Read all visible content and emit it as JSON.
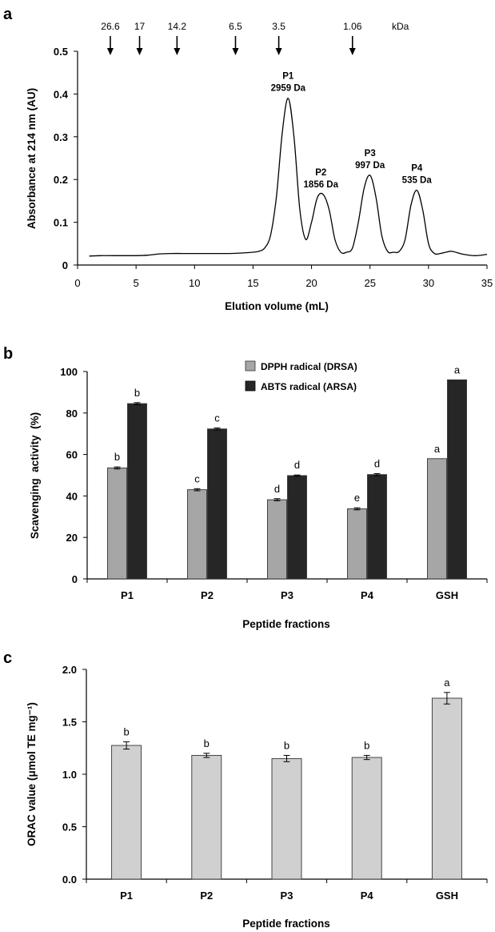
{
  "chart_data": [
    {
      "panel": "a",
      "type": "line",
      "xlabel": "Elution volume (mL)",
      "ylabel": "Absorbance at 214 nm (AU)",
      "xlim": [
        0,
        35
      ],
      "ylim": [
        0,
        0.5
      ],
      "xticks": [
        0,
        5,
        10,
        15,
        20,
        25,
        30,
        35
      ],
      "yticks": [
        "0",
        "0.1",
        "0.2",
        "0.3",
        "0.4",
        "0.5"
      ],
      "grid": false,
      "x": [
        1,
        2,
        3,
        4,
        5,
        6,
        7,
        8,
        9,
        10,
        11,
        12,
        13,
        14,
        15,
        15.5,
        16,
        16.5,
        17,
        17.5,
        18,
        18.5,
        19,
        19.5,
        20,
        20.5,
        21,
        21.5,
        22,
        22.5,
        23,
        23.5,
        24,
        24.5,
        25,
        25.5,
        26,
        26.5,
        27,
        27.5,
        28,
        28.5,
        29,
        29.5,
        30,
        30.5,
        31,
        31.5,
        32,
        33,
        34,
        35
      ],
      "y": [
        0.021,
        0.022,
        0.022,
        0.022,
        0.022,
        0.023,
        0.026,
        0.027,
        0.027,
        0.027,
        0.027,
        0.027,
        0.027,
        0.028,
        0.03,
        0.032,
        0.04,
        0.07,
        0.16,
        0.31,
        0.39,
        0.3,
        0.13,
        0.06,
        0.1,
        0.158,
        0.165,
        0.13,
        0.06,
        0.03,
        0.03,
        0.04,
        0.1,
        0.18,
        0.21,
        0.16,
        0.07,
        0.032,
        0.03,
        0.032,
        0.06,
        0.14,
        0.175,
        0.13,
        0.05,
        0.027,
        0.027,
        0.03,
        0.032,
        0.025,
        0.022,
        0.025
      ],
      "mw_markers": {
        "unit": "kDa",
        "labels": [
          "26.6",
          "17",
          "14.2",
          "6.5",
          "3.5",
          "1.06"
        ],
        "x": [
          2.8,
          5.3,
          8.5,
          13.5,
          17.2,
          23.5
        ]
      },
      "peaks": [
        {
          "name": "P1",
          "mass": "2959 Da",
          "x": 18.0,
          "y": 0.39
        },
        {
          "name": "P2",
          "mass": "1856 Da",
          "x": 20.8,
          "y": 0.165
        },
        {
          "name": "P3",
          "mass": "997 Da",
          "x": 25.0,
          "y": 0.21
        },
        {
          "name": "P4",
          "mass": "535 Da",
          "x": 29.0,
          "y": 0.175
        }
      ]
    },
    {
      "panel": "b",
      "type": "bar",
      "xlabel": "Peptide fractions",
      "ylabel": "Scavenging  activity  (%)",
      "ylim": [
        0,
        100
      ],
      "yticks": [
        "0",
        "20",
        "40",
        "60",
        "80",
        "100"
      ],
      "categories": [
        "P1",
        "P2",
        "P3",
        "P4",
        "GSH"
      ],
      "legend_position": "top-right",
      "series": [
        {
          "name": "DPPH radical (DRSA)",
          "color": "#a6a6a6",
          "values": [
            53.5,
            43,
            38.2,
            33.8,
            58
          ],
          "errors": [
            0.5,
            0.5,
            0.5,
            0.5,
            0
          ],
          "letters": [
            "b",
            "c",
            "d",
            "e",
            "a"
          ]
        },
        {
          "name": "ABTS radical (ARSA)",
          "color": "#262626",
          "values": [
            84.5,
            72.3,
            49.8,
            50.3,
            96
          ],
          "errors": [
            0.5,
            0.5,
            0.3,
            0.5,
            0
          ],
          "letters": [
            "b",
            "c",
            "d",
            "d",
            "a"
          ]
        }
      ]
    },
    {
      "panel": "c",
      "type": "bar",
      "xlabel": "Peptide fractions",
      "ylabel": "ORAC value (μmol TE mg⁻¹)",
      "ylim": [
        0,
        2.0
      ],
      "yticks": [
        "0.0",
        "0.5",
        "1.0",
        "1.5",
        "2.0"
      ],
      "categories": [
        "P1",
        "P2",
        "P3",
        "P4",
        "GSH"
      ],
      "series": [
        {
          "name": "",
          "color": "#d0d0d0",
          "values": [
            1.275,
            1.18,
            1.15,
            1.16,
            1.725
          ],
          "errors": [
            0.035,
            0.02,
            0.03,
            0.02,
            0.055
          ],
          "letters": [
            "b",
            "b",
            "b",
            "b",
            "a"
          ]
        }
      ]
    }
  ]
}
